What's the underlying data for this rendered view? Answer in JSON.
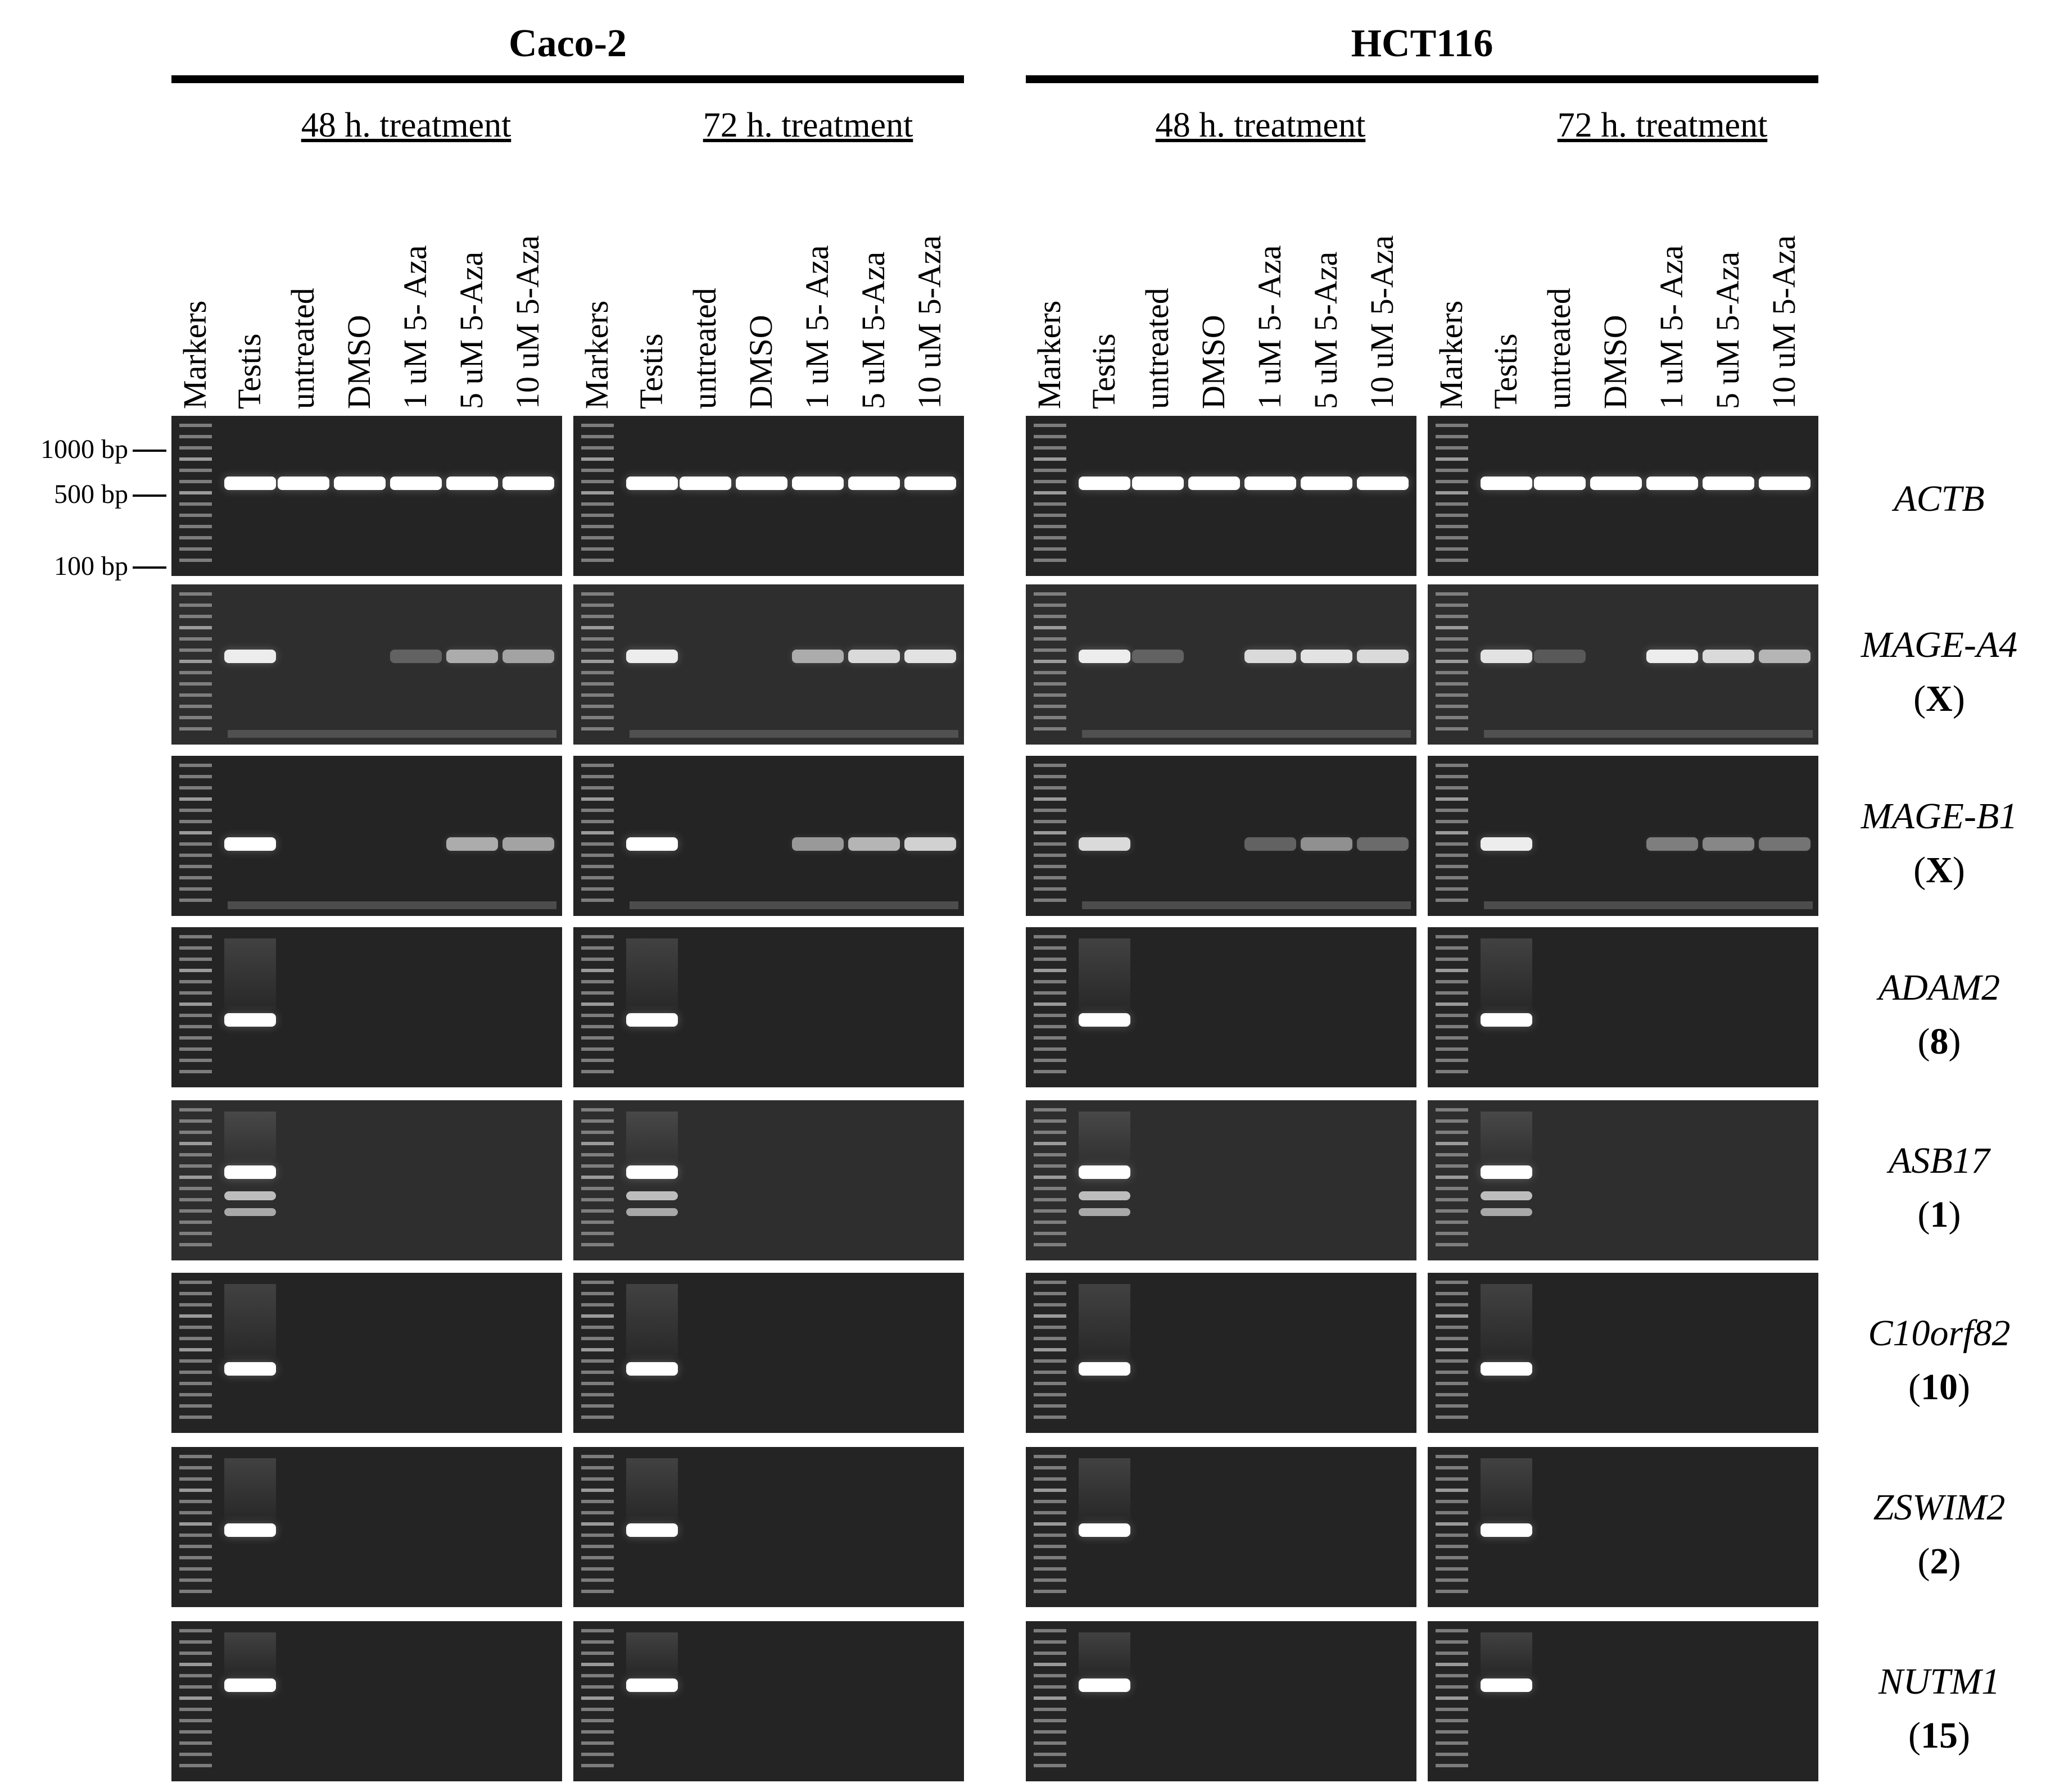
{
  "cell_lines": [
    {
      "name": "Caco-2",
      "timepoints": [
        "48 h. treatment",
        "72 h. treatment"
      ]
    },
    {
      "name": "HCT116",
      "timepoints": [
        "48 h. treatment",
        "72 h. treatment"
      ]
    }
  ],
  "lanes": [
    "Markers",
    "Testis",
    "untreated",
    "DMSO",
    "1 uM 5- Aza",
    "5 uM 5-Aza",
    "10 uM 5-Aza"
  ],
  "size_markers": [
    "1000 bp",
    "500 bp",
    "100 bp"
  ],
  "genes": [
    {
      "name": "ACTB",
      "chromosome": "",
      "band_pos": 0.42,
      "intensity": [
        [
          1,
          1,
          1,
          1,
          1,
          1
        ],
        [
          1,
          1,
          1,
          1,
          1,
          1
        ],
        [
          1,
          1,
          1,
          1,
          1,
          1
        ],
        [
          1,
          1,
          1,
          1,
          1,
          1
        ]
      ]
    },
    {
      "name": "MAGE-A4",
      "chromosome": "X",
      "band_pos": 0.45,
      "intensity": [
        [
          0.9,
          0,
          0,
          0.15,
          0.55,
          0.5
        ],
        [
          0.9,
          0,
          0,
          0.55,
          0.8,
          0.85
        ],
        [
          0.9,
          0.15,
          0,
          0.8,
          0.85,
          0.8
        ],
        [
          0.85,
          0.1,
          0,
          0.9,
          0.8,
          0.6
        ]
      ]
    },
    {
      "name": "MAGE-B1",
      "chromosome": "X",
      "band_pos": 0.55,
      "intensity": [
        [
          1,
          0,
          0,
          0,
          0.55,
          0.5
        ],
        [
          1,
          0,
          0,
          0.45,
          0.6,
          0.75
        ],
        [
          0.8,
          0,
          0,
          0.15,
          0.4,
          0.2
        ],
        [
          0.9,
          0,
          0,
          0.3,
          0.35,
          0.25
        ]
      ]
    },
    {
      "name": "ADAM2",
      "chromosome": "8",
      "band_pos": 0.58,
      "intensity": [
        [
          1,
          0,
          0,
          0,
          0,
          0
        ],
        [
          1,
          0,
          0,
          0,
          0,
          0
        ],
        [
          1,
          0,
          0,
          0,
          0,
          0
        ],
        [
          1,
          0,
          0,
          0,
          0,
          0
        ]
      ]
    },
    {
      "name": "ASB17",
      "chromosome": "1",
      "band_pos": 0.45,
      "intensity": [
        [
          1,
          0,
          0,
          0,
          0,
          0
        ],
        [
          1,
          0,
          0,
          0,
          0,
          0
        ],
        [
          1,
          0,
          0,
          0,
          0,
          0
        ],
        [
          1,
          0,
          0,
          0,
          0,
          0
        ]
      ]
    },
    {
      "name": "C10orf82",
      "chromosome": "10",
      "band_pos": 0.6,
      "intensity": [
        [
          1,
          0,
          0,
          0,
          0,
          0
        ],
        [
          1,
          0,
          0,
          0,
          0,
          0
        ],
        [
          1,
          0,
          0,
          0,
          0,
          0
        ],
        [
          1,
          0,
          0,
          0,
          0,
          0
        ]
      ]
    },
    {
      "name": "ZSWIM2",
      "chromosome": "2",
      "band_pos": 0.52,
      "intensity": [
        [
          1,
          0,
          0,
          0,
          0,
          0
        ],
        [
          1,
          0,
          0,
          0,
          0,
          0
        ],
        [
          1,
          0,
          0,
          0,
          0,
          0
        ],
        [
          1,
          0,
          0,
          0,
          0,
          0
        ]
      ]
    },
    {
      "name": "NUTM1",
      "chromosome": "15",
      "band_pos": 0.4,
      "intensity": [
        [
          1,
          0,
          0,
          0,
          0,
          0
        ],
        [
          1,
          0,
          0,
          0,
          0,
          0
        ],
        [
          1,
          0,
          0,
          0,
          0,
          0
        ],
        [
          1,
          0,
          0,
          0,
          0,
          0
        ]
      ]
    }
  ]
}
